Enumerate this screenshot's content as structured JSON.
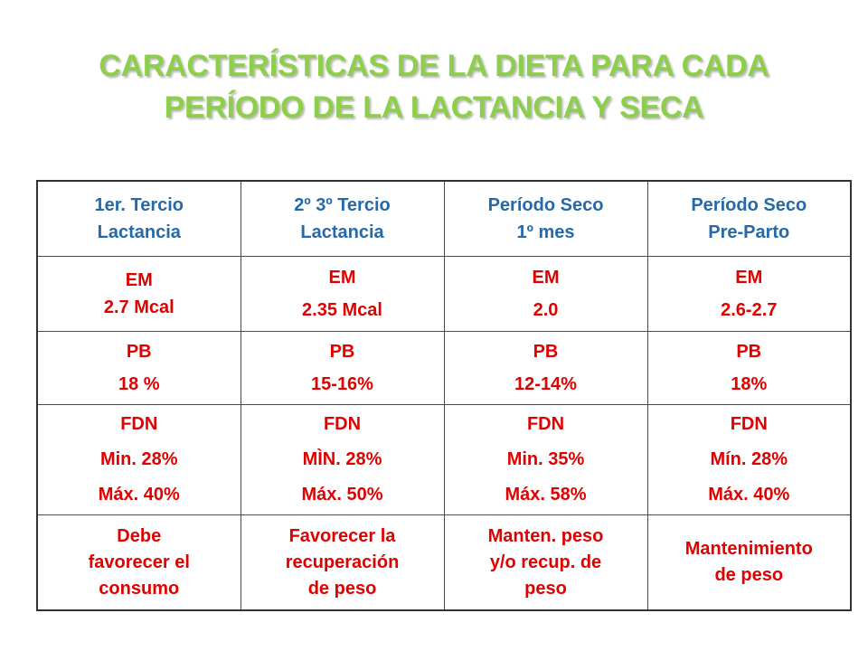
{
  "title": {
    "line1": "CARACTERÍSTICAS DE LA DIETA PARA CADA",
    "line2": "PERÍODO DE LA LACTANCIA Y SECA"
  },
  "table": {
    "headers": [
      [
        "1er. Tercio",
        "Lactancia"
      ],
      [
        "2º 3º Tercio",
        "Lactancia"
      ],
      [
        "Período Seco",
        "1º mes"
      ],
      [
        "Período Seco",
        "Pre-Parto"
      ]
    ],
    "em": [
      [
        "EM",
        "2.7 Mcal"
      ],
      [
        "EM",
        "2.35 Mcal"
      ],
      [
        "EM",
        "2.0"
      ],
      [
        "EM",
        "2.6-2.7"
      ]
    ],
    "pb": [
      [
        "PB",
        "18 %"
      ],
      [
        "PB",
        "15-16%"
      ],
      [
        "PB",
        "12-14%"
      ],
      [
        "PB",
        "18%"
      ]
    ],
    "fdn": [
      [
        "FDN",
        "Min. 28%",
        "Máx. 40%"
      ],
      [
        "FDN",
        "MÌN. 28%",
        "Máx. 50%"
      ],
      [
        "FDN",
        "Min. 35%",
        "Máx. 58%"
      ],
      [
        "FDN",
        "Mín. 28%",
        "Máx. 40%"
      ]
    ],
    "goal": [
      [
        "Debe",
        "favorecer el",
        "consumo"
      ],
      [
        "Favorecer la",
        "recuperación",
        "de peso"
      ],
      [
        "Manten. peso",
        "y/o recup. de",
        "peso"
      ],
      [
        "Mantenimiento",
        "de peso"
      ]
    ]
  },
  "colors": {
    "title": "#8dcf4a",
    "header_text": "#2569a8",
    "body_text": "#e00000",
    "border": "#4a4a4a"
  }
}
